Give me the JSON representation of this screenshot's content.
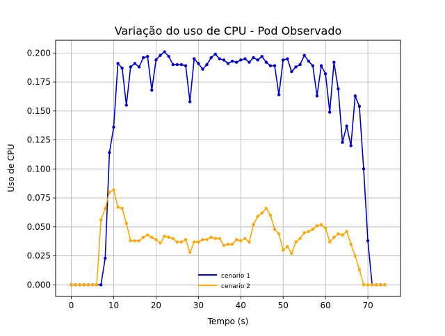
{
  "chart_data": {
    "type": "line",
    "title": "Variação do uso de CPU - Pod Observado",
    "xlabel": "Tempo (s)",
    "ylabel": "Uso de CPU",
    "xlim": [
      -3.7,
      77.7
    ],
    "ylim": [
      -0.01,
      0.211
    ],
    "xticks": [
      0,
      10,
      20,
      30,
      40,
      50,
      60,
      70
    ],
    "yticks": [
      0.0,
      0.025,
      0.05,
      0.075,
      0.1,
      0.125,
      0.15,
      0.175,
      0.2
    ],
    "ytick_labels": [
      "0.000",
      "0.025",
      "0.050",
      "0.075",
      "0.100",
      "0.125",
      "0.150",
      "0.175",
      "0.200"
    ],
    "grid": true,
    "legend_position": "bottom-center",
    "x": [
      0,
      1,
      2,
      3,
      4,
      5,
      6,
      7,
      8,
      9,
      10,
      11,
      12,
      13,
      14,
      15,
      16,
      17,
      18,
      19,
      20,
      21,
      22,
      23,
      24,
      25,
      26,
      27,
      28,
      29,
      30,
      31,
      32,
      33,
      34,
      35,
      36,
      37,
      38,
      39,
      40,
      41,
      42,
      43,
      44,
      45,
      46,
      47,
      48,
      49,
      50,
      51,
      52,
      53,
      54,
      55,
      56,
      57,
      58,
      59,
      60,
      61,
      62,
      63,
      64,
      65,
      66,
      67,
      68,
      69,
      70,
      71,
      72,
      73,
      74
    ],
    "series": [
      {
        "name": "cenario 1",
        "color": "#0000cc",
        "values": [
          0,
          0,
          0,
          0,
          0,
          0,
          0,
          0,
          0.023,
          0.114,
          0.136,
          0.191,
          0.187,
          0.155,
          0.188,
          0.191,
          0.188,
          0.196,
          0.197,
          0.168,
          0.194,
          0.198,
          0.201,
          0.197,
          0.19,
          0.19,
          0.19,
          0.189,
          0.158,
          0.195,
          0.191,
          0.186,
          0.19,
          0.196,
          0.199,
          0.195,
          0.194,
          0.191,
          0.193,
          0.192,
          0.194,
          0.195,
          0.192,
          0.196,
          0.194,
          0.197,
          0.192,
          0.189,
          0.189,
          0.164,
          0.194,
          0.195,
          0.184,
          0.188,
          0.19,
          0.198,
          0.193,
          0.189,
          0.163,
          0.189,
          0.182,
          0.149,
          0.192,
          0.169,
          0.123,
          0.137,
          0.12,
          0.163,
          0.154,
          0.1,
          0.038,
          0,
          0,
          0,
          0
        ]
      },
      {
        "name": "cenario 2",
        "color": "#ffa500",
        "values": [
          0,
          0,
          0,
          0,
          0,
          0,
          0,
          0.056,
          0.066,
          0.08,
          0.082,
          0.067,
          0.066,
          0.053,
          0.038,
          0.038,
          0.038,
          0.041,
          0.043,
          0.041,
          0.039,
          0.036,
          0.042,
          0.041,
          0.04,
          0.037,
          0.037,
          0.039,
          0.028,
          0.037,
          0.037,
          0.039,
          0.039,
          0.041,
          0.04,
          0.04,
          0.034,
          0.035,
          0.035,
          0.039,
          0.038,
          0.04,
          0.037,
          0.052,
          0.059,
          0.062,
          0.066,
          0.06,
          0.048,
          0.044,
          0.03,
          0.033,
          0.027,
          0.037,
          0.04,
          0.045,
          0.046,
          0.048,
          0.051,
          0.052,
          0.049,
          0.037,
          0.041,
          0.044,
          0.043,
          0.046,
          0.035,
          0.025,
          0.013,
          0,
          0,
          0,
          0,
          0,
          0
        ]
      }
    ]
  }
}
